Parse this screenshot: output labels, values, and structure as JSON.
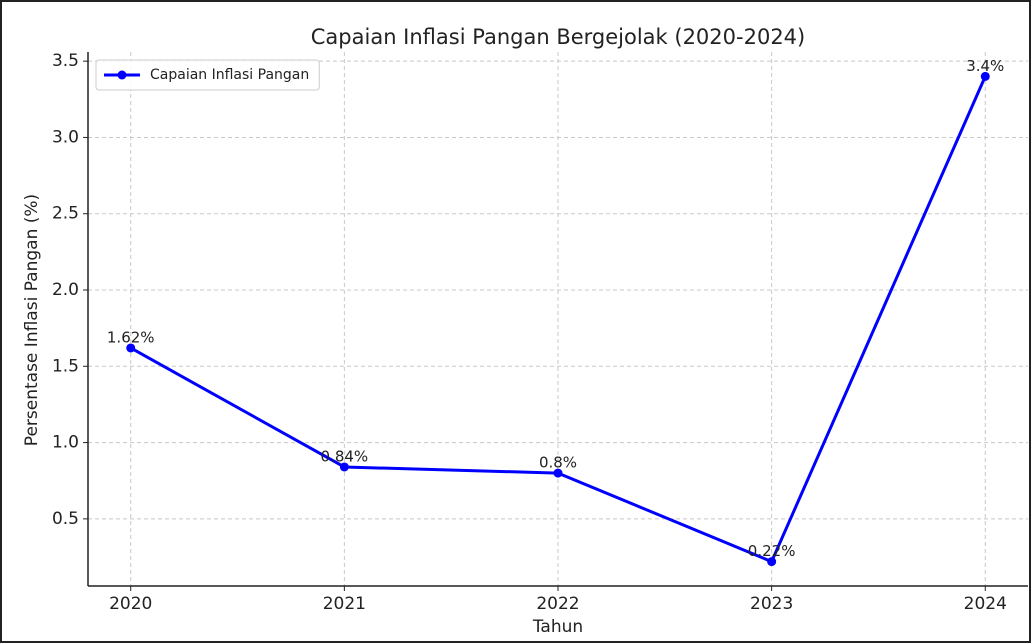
{
  "chart_data": {
    "type": "line",
    "title": "Capaian Inflasi Pangan Bergejolak (2020-2024)",
    "x_label": "Tahun",
    "y_label": "Persentase Inflasi Pangan (%)",
    "x": [
      2020,
      2021,
      2022,
      2023,
      2024
    ],
    "series": [
      {
        "name": "Capaian Inflasi Pangan",
        "color": "#0000ff",
        "values": [
          1.62,
          0.84,
          0.8,
          0.22,
          3.4
        ],
        "value_labels": [
          "1.62%",
          "0.84%",
          "0.8%",
          "0.22%",
          "3.4%"
        ]
      }
    ],
    "xlim": [
      2019.8,
      2024.2
    ],
    "xticks": [
      2020,
      2021,
      2022,
      2023,
      2024
    ],
    "ylim": [
      0.06,
      3.56
    ],
    "yticks": [
      0.5,
      {
        "value": 1.0,
        "label": "1.0"
      },
      1.5,
      {
        "value": 2.0,
        "label": "2.0"
      },
      2.5,
      {
        "value": 3.0,
        "label": "3.0"
      },
      3.5
    ],
    "grid": true,
    "legend": "upper left"
  }
}
